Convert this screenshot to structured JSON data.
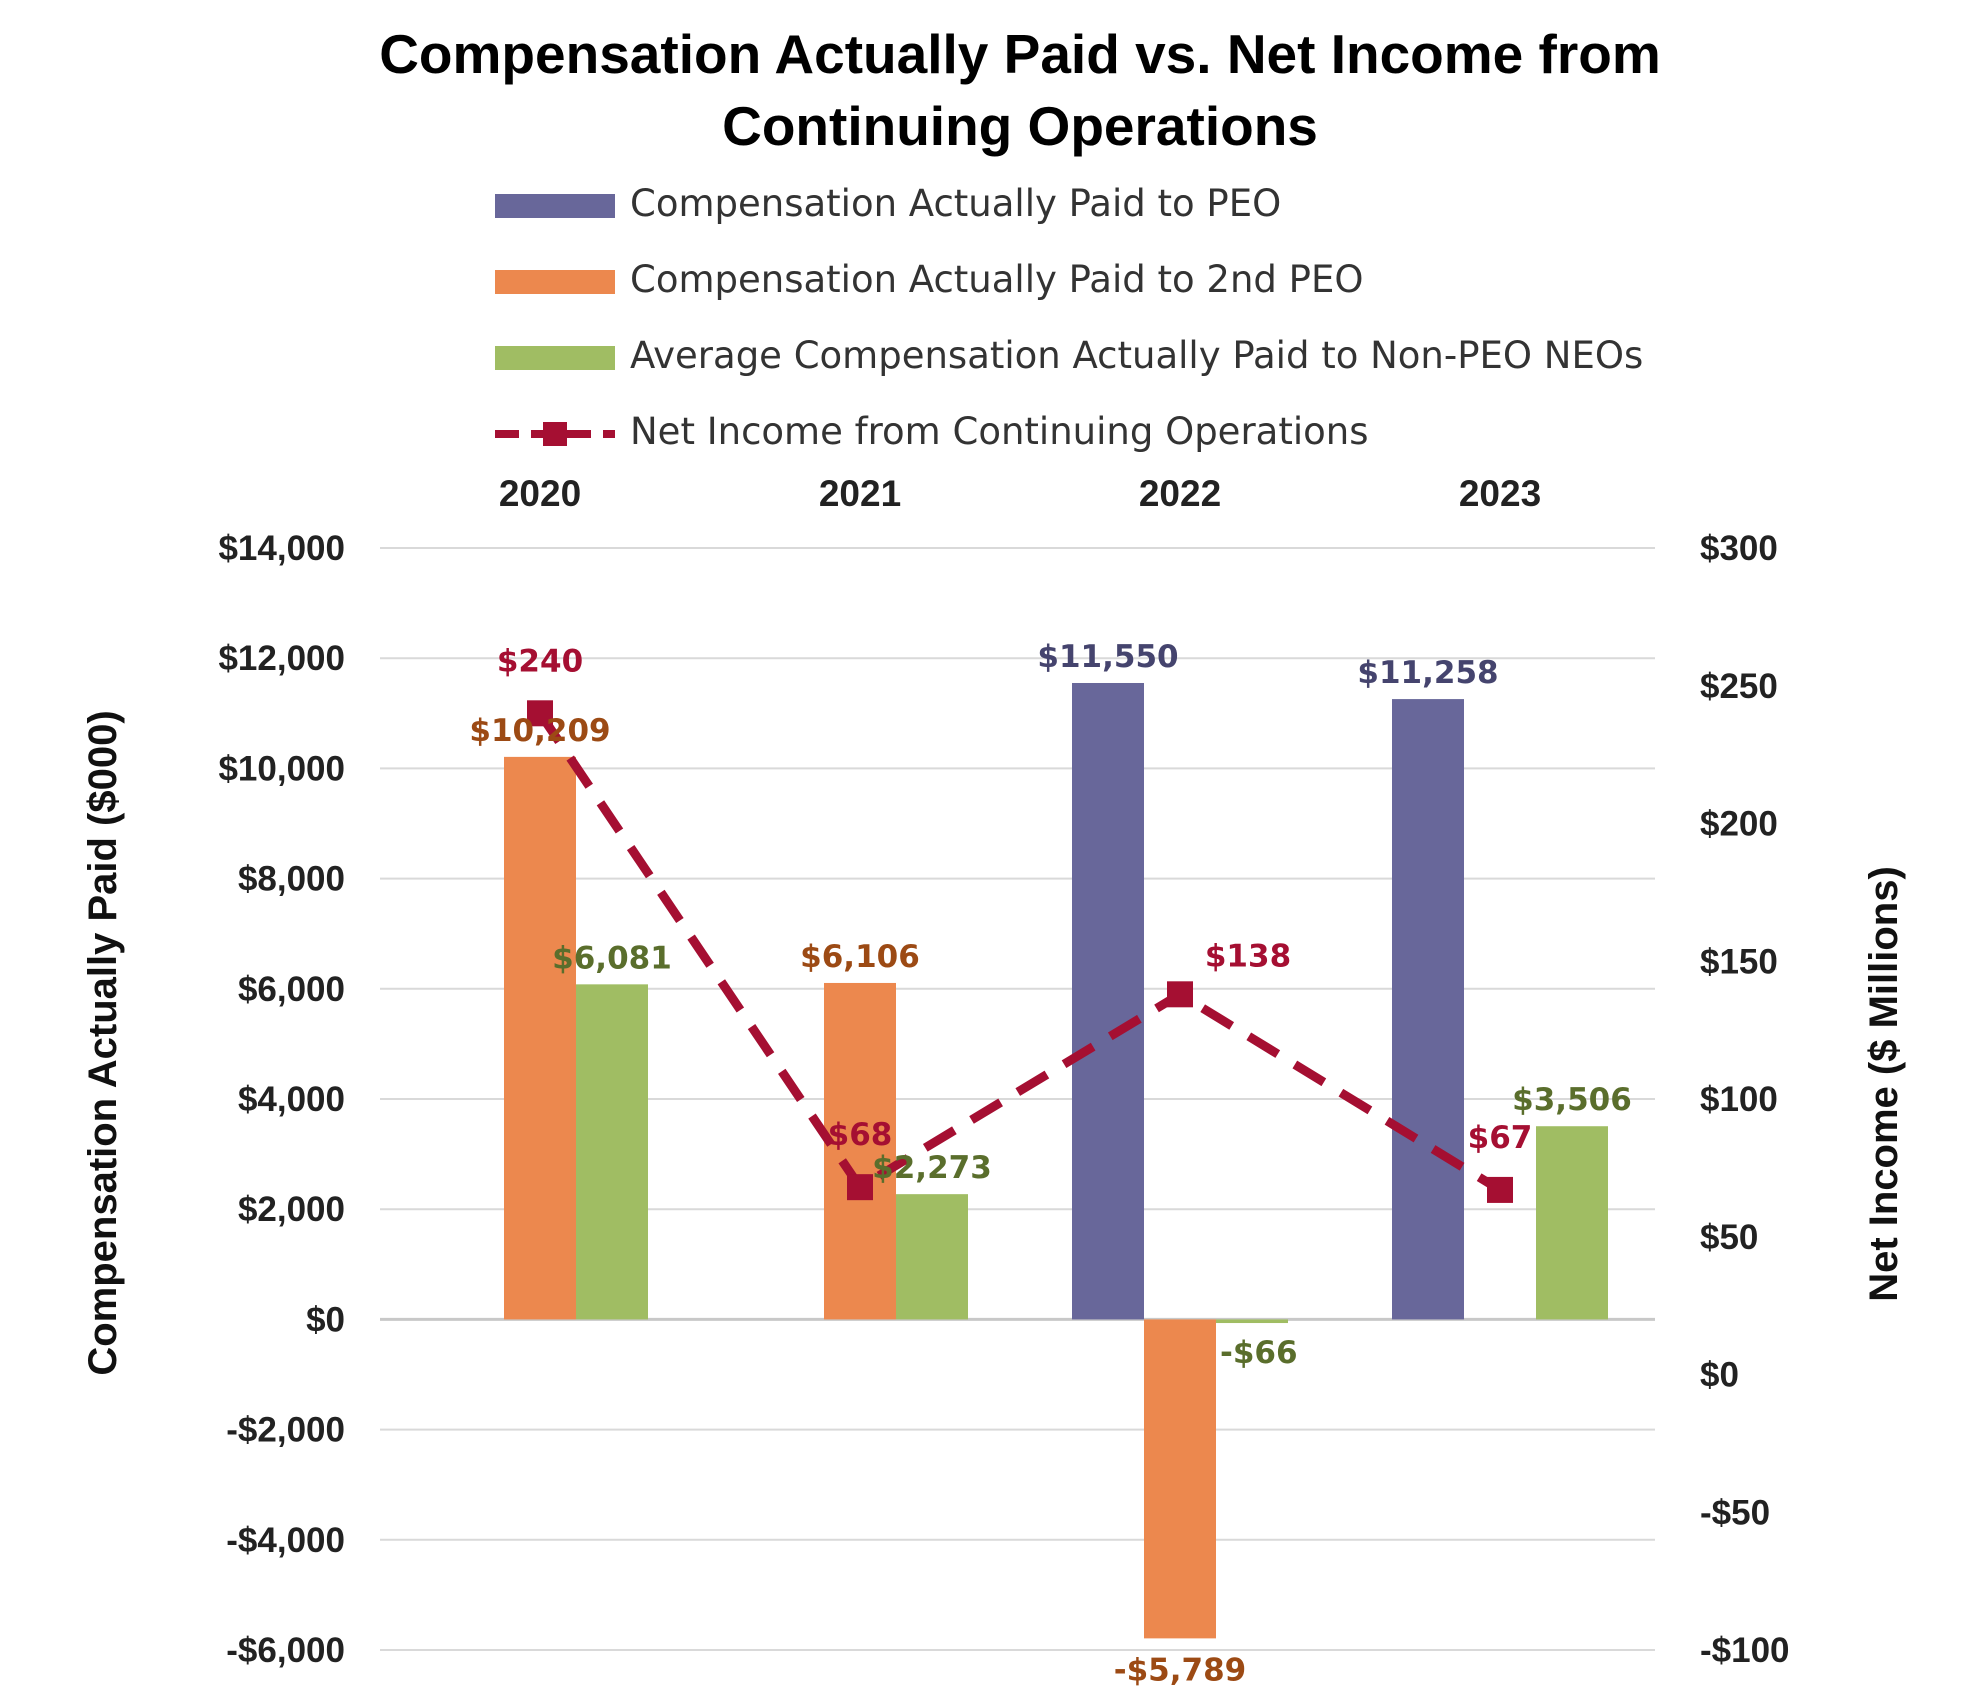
{
  "chart_data": {
    "type": "bar",
    "title_lines": [
      "Compensation Actually Paid vs. Net Income from",
      "Continuing Operations"
    ],
    "categories": [
      "2020",
      "2021",
      "2022",
      "2023"
    ],
    "ylabel_left": "Compensation Actually Paid ($000)",
    "ylabel_right": "Net Income ($ Millions)",
    "ylim_left": [
      -6000,
      14000
    ],
    "ylim_right": [
      -100,
      300
    ],
    "left_ticks": [
      14000,
      12000,
      10000,
      8000,
      6000,
      4000,
      2000,
      0,
      -2000,
      -4000,
      -6000
    ],
    "left_tick_labels": [
      "$14,000",
      "$12,000",
      "$10,000",
      "$8,000",
      "$6,000",
      "$4,000",
      "$2,000",
      "$0",
      "-$2,000",
      "-$4,000",
      "-$6,000"
    ],
    "right_ticks": [
      300,
      250,
      200,
      150,
      100,
      50,
      0,
      -50,
      -100
    ],
    "right_tick_labels": [
      "$300",
      "$250",
      "$200",
      "$150",
      "$100",
      "$50",
      "$0",
      "-$50",
      "-$100"
    ],
    "grid": true,
    "legend_position": "top",
    "series": [
      {
        "name": "Compensation Actually Paid to PEO",
        "kind": "bar",
        "axis": "left",
        "color": "#68679A",
        "label_color": "#45446E",
        "values": [
          null,
          null,
          11550,
          11258
        ],
        "labels": [
          "",
          "",
          "$11,550",
          "$11,258"
        ]
      },
      {
        "name": "Compensation Actually Paid to 2nd PEO",
        "kind": "bar",
        "axis": "left",
        "color": "#EC884E",
        "label_color": "#9C4A14",
        "values": [
          10209,
          6106,
          -5789,
          null
        ],
        "labels": [
          "$10,209",
          "$6,106",
          "-$5,789",
          ""
        ]
      },
      {
        "name": "Average Compensation Actually Paid to Non-PEO NEOs",
        "kind": "bar",
        "axis": "left",
        "color": "#A0BD63",
        "label_color": "#5A6E2C",
        "values": [
          6081,
          2273,
          -66,
          3506
        ],
        "labels": [
          "$6,081",
          "$2,273",
          "-$66",
          "$3,506"
        ]
      },
      {
        "name": "Net Income from Continuing Operations",
        "kind": "line",
        "axis": "right",
        "color": "#A50F32",
        "label_color": "#A50F32",
        "values": [
          240,
          68,
          138,
          67
        ],
        "labels": [
          "$240",
          "$68",
          "$138",
          "$67"
        ]
      }
    ]
  }
}
